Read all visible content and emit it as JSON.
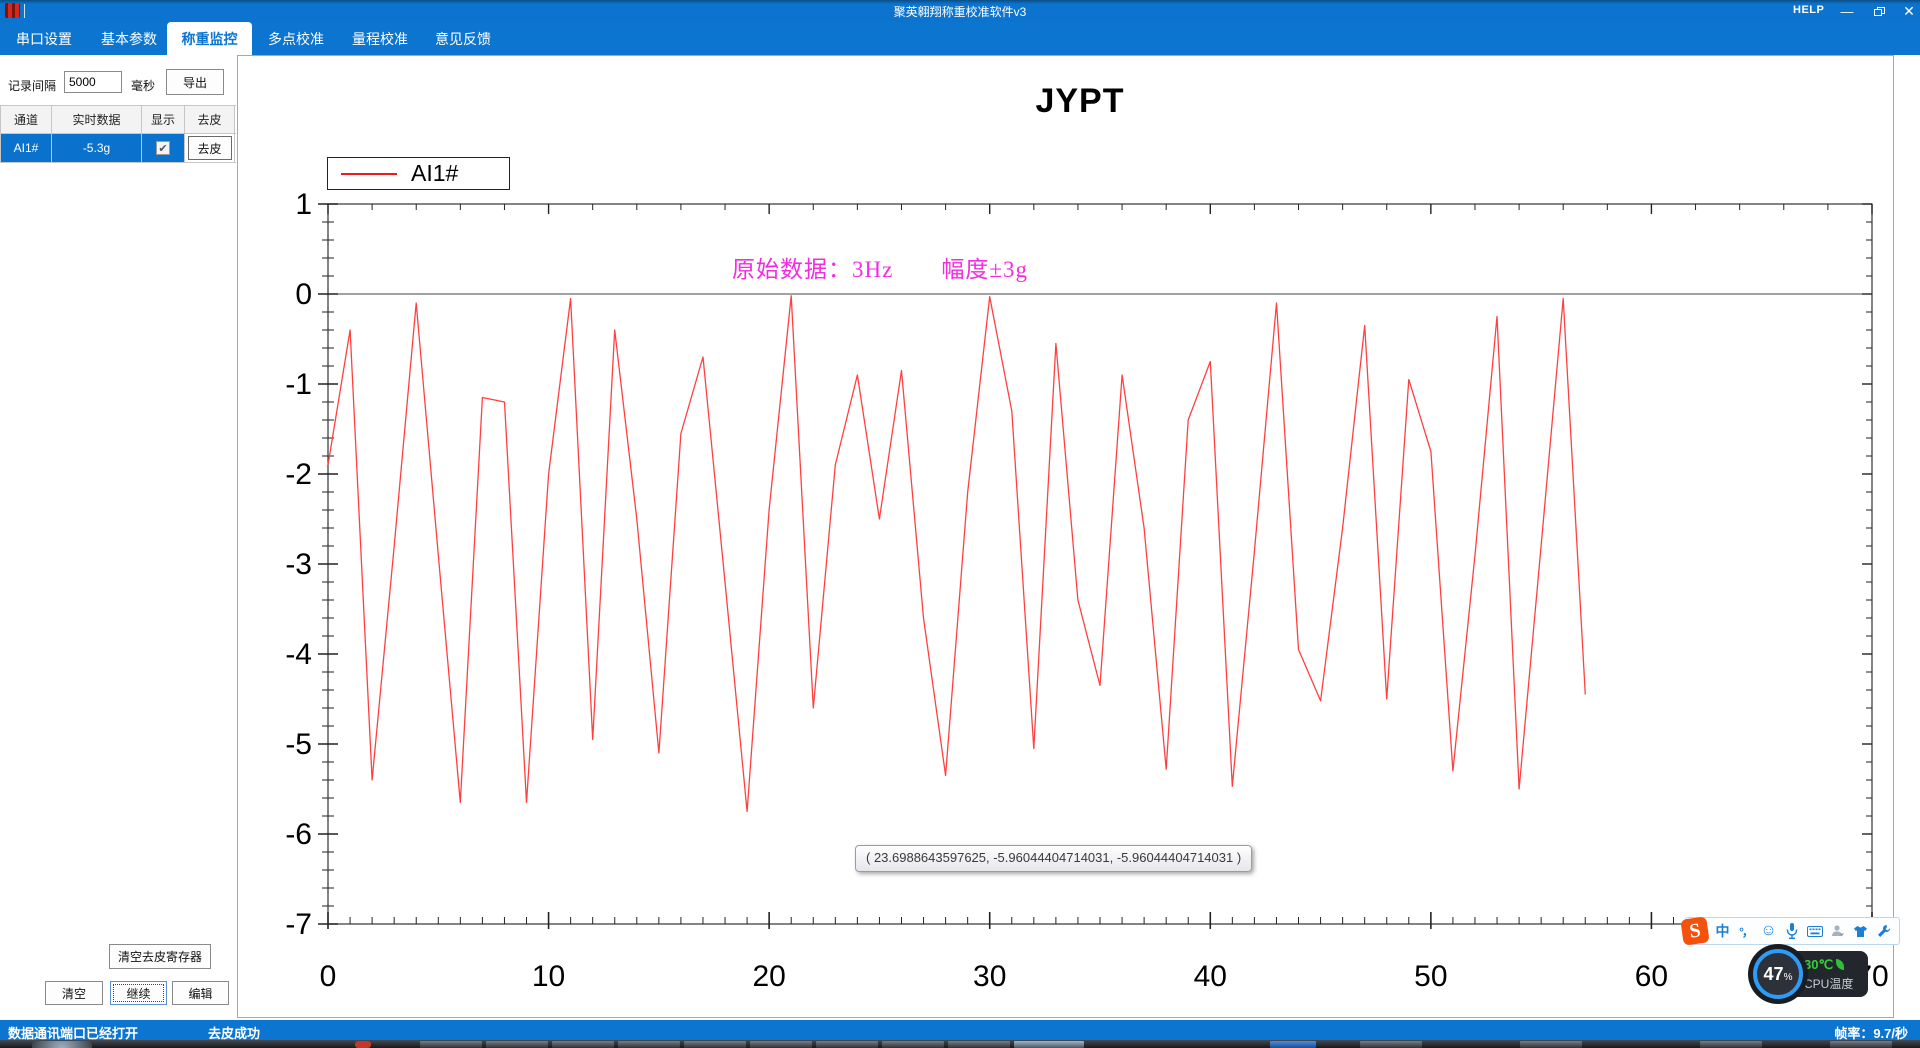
{
  "titlebar": {
    "title": "聚英翱翔称重校准软件v3",
    "help": "HELP"
  },
  "tabs": [
    {
      "label": "串口设置",
      "active": false
    },
    {
      "label": "基本参数",
      "active": false
    },
    {
      "label": "称重监控",
      "active": true
    },
    {
      "label": "多点校准",
      "active": false
    },
    {
      "label": "量程校准",
      "active": false
    },
    {
      "label": "意见反馈",
      "active": false
    }
  ],
  "sidebar": {
    "interval": {
      "label": "记录间隔",
      "value": "5000",
      "unit": "毫秒"
    },
    "export_label": "导出",
    "table": {
      "headers": [
        "通道",
        "实时数据",
        "显示",
        "去皮"
      ],
      "row": {
        "channel": "AI1#",
        "value": "-5.3g",
        "tare": "去皮"
      }
    },
    "buttons": {
      "clear_tare": "清空去皮寄存器",
      "clear": "清空",
      "resume": "继续",
      "edit": "编辑"
    }
  },
  "statusbar": {
    "left": "数据通讯端口已经打开",
    "middle": "去皮成功",
    "right": "帧率：9.7/秒"
  },
  "ime": {
    "logo": "S",
    "chinese_mode": "中",
    "punctuation": "°，",
    "icons": [
      "sogou-logo",
      "chinese-mode",
      "punctuation",
      "emoji",
      "microphone",
      "keyboard",
      "account",
      "skin",
      "settings"
    ]
  },
  "cpu_widget": {
    "percent": "47",
    "percent_sign": "%",
    "temperature": "30℃",
    "label": "CPU温度"
  },
  "colors": {
    "accent_blue": "#0c75d0",
    "selected_row": "#0a72cc",
    "series_red": "#ff4040",
    "annotation_magenta": "#f32ce0"
  },
  "chart_data": {
    "type": "line",
    "title": "JYPT",
    "legend": {
      "label": "AI1#",
      "position": "top-left"
    },
    "annotation": "原始数据：3Hz　　幅度±3g",
    "tooltip": "( 23.6988643597625, -5.96044404714031, -5.96044404714031 )",
    "xlim": [
      0,
      70
    ],
    "ylim": [
      -7,
      1
    ],
    "x_tick_values": [
      0,
      10,
      20,
      30,
      40,
      50,
      60,
      70
    ],
    "x_tick_labels": [
      "0",
      "10",
      "20",
      "30",
      "40",
      "50",
      "60",
      "70"
    ],
    "y_tick_values": [
      1,
      0,
      -1,
      -2,
      -3,
      -4,
      -5,
      -6,
      -7
    ],
    "y_tick_labels": [
      "1",
      "0",
      "-1",
      "-2",
      "-3",
      "-4",
      "-5",
      "-6",
      "-7"
    ],
    "x_minor_step": 1,
    "y_minor_step": 0.2,
    "zero_line": 0,
    "grid": false,
    "series": [
      {
        "name": "AI1#",
        "color": "#ff4040",
        "x_start": 0,
        "x_step": 1,
        "values": [
          -1.9,
          -0.4,
          -5.4,
          -2.8,
          -0.1,
          -2.9,
          -5.65,
          -1.15,
          -1.2,
          -5.65,
          -2.0,
          -0.05,
          -4.95,
          -0.4,
          -2.5,
          -5.1,
          -1.55,
          -0.7,
          -3.2,
          -5.75,
          -2.4,
          -0.02,
          -4.6,
          -1.9,
          -0.9,
          -2.5,
          -0.85,
          -3.6,
          -5.35,
          -2.2,
          -0.03,
          -1.3,
          -5.05,
          -0.55,
          -3.4,
          -4.35,
          -0.9,
          -2.6,
          -5.28,
          -1.4,
          -0.75,
          -5.47,
          -2.86,
          -0.1,
          -3.95,
          -4.52,
          -2.6,
          -0.35,
          -4.5,
          -0.95,
          -1.75,
          -5.3,
          -2.9,
          -0.25,
          -5.5,
          -2.8,
          -0.05,
          -4.45
        ]
      }
    ]
  }
}
